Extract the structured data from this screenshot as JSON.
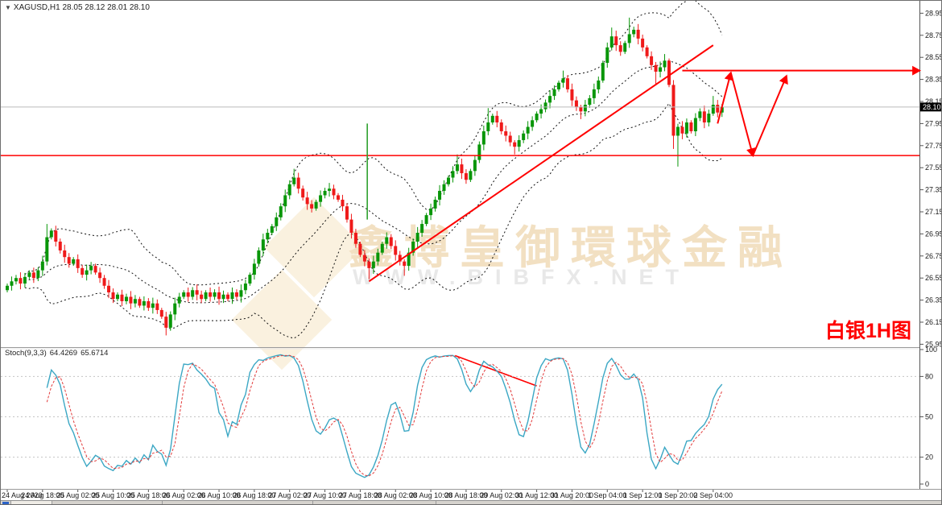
{
  "window": {
    "title_expander": "▼",
    "symbol_title": "XAGUSD,H1",
    "ohlc_text": "28.05 28.12 28.01 28.10"
  },
  "watermark": {
    "cn": "鑫博皇御環球金融",
    "url": "WWW.BIBFX.NET"
  },
  "overlay_label": "白银1H图",
  "quote": {
    "last": 28.1,
    "last_label": "28.10"
  },
  "stoch_header": {
    "name": "Stoch(9,3,3)",
    "main_value": "64.4269",
    "signal_value": "65.6714"
  },
  "style": {
    "bull": "#089608",
    "bear": "#ef1a1a",
    "band": "#111111",
    "bidline": "#bbbbbb",
    "annotation": "#ff0000",
    "vline": "#2fa12f",
    "stoch_main": "#3ba7c4",
    "stoch_signal": "#e23a3a",
    "level": "#c4c4c4",
    "axis_text": "#1a1a1a",
    "frame": "#555555",
    "separator": "#9a9a9a",
    "tag_bg": "#000000",
    "tag_text": "#ffffff"
  },
  "chart_data": {
    "type": "candlestick",
    "symbol": "XAGUSD",
    "timeframe": "H1",
    "title": "XAGUSD,H1 28.05 28.12 28.01 28.10",
    "x_labels": [
      "24 Aug 2020",
      "24 Aug 18:00",
      "25 Aug 02:00",
      "25 Aug 10:00",
      "25 Aug 18:00",
      "26 Aug 02:00",
      "26 Aug 10:00",
      "26 Aug 18:00",
      "27 Aug 02:00",
      "27 Aug 10:00",
      "27 Aug 18:00",
      "28 Aug 02:00",
      "28 Aug 10:00",
      "28 Aug 18:00",
      "29 Aug 02:00",
      "31 Aug 12:00",
      "31 Aug 20:00",
      "1 Sep 04:00",
      "1 Sep 12:00",
      "1 Sep 20:00",
      "2 Sep 04:00"
    ],
    "bars_per_label": 8,
    "y_ticks": [
      28.95,
      28.75,
      28.55,
      28.35,
      28.15,
      27.95,
      27.75,
      27.55,
      27.35,
      27.15,
      26.95,
      26.75,
      26.55,
      26.35,
      26.15,
      25.95
    ],
    "closes": [
      26.48,
      26.52,
      26.55,
      26.5,
      26.56,
      26.6,
      26.55,
      26.62,
      26.7,
      26.92,
      26.98,
      26.88,
      26.8,
      26.74,
      26.68,
      26.72,
      26.64,
      26.58,
      26.62,
      26.66,
      26.6,
      26.55,
      26.48,
      26.42,
      26.36,
      26.4,
      26.34,
      26.38,
      26.32,
      26.36,
      26.3,
      26.34,
      26.28,
      26.32,
      26.26,
      26.2,
      26.1,
      26.22,
      26.32,
      26.38,
      26.42,
      26.38,
      26.44,
      26.4,
      26.36,
      26.42,
      26.38,
      26.42,
      26.36,
      26.4,
      26.36,
      26.42,
      26.38,
      26.44,
      26.5,
      26.58,
      26.68,
      26.8,
      26.9,
      26.96,
      27.02,
      27.1,
      27.2,
      27.3,
      27.4,
      27.46,
      27.36,
      27.28,
      27.22,
      27.18,
      27.24,
      27.3,
      27.34,
      27.36,
      27.3,
      27.26,
      27.2,
      27.08,
      26.96,
      26.86,
      26.76,
      26.7,
      26.64,
      26.7,
      26.78,
      26.86,
      26.92,
      26.84,
      26.76,
      26.7,
      26.66,
      26.78,
      26.88,
      26.96,
      27.04,
      27.12,
      27.18,
      27.26,
      27.34,
      27.4,
      27.46,
      27.52,
      27.58,
      27.5,
      27.44,
      27.52,
      27.62,
      27.76,
      27.88,
      27.96,
      28.02,
      27.96,
      27.88,
      27.84,
      27.78,
      27.74,
      27.8,
      27.86,
      27.92,
      27.98,
      28.04,
      28.08,
      28.14,
      28.2,
      28.26,
      28.32,
      28.36,
      28.26,
      28.16,
      28.1,
      28.06,
      28.12,
      28.18,
      28.26,
      28.34,
      28.5,
      28.64,
      28.74,
      28.66,
      28.6,
      28.68,
      28.76,
      28.8,
      28.72,
      28.64,
      28.56,
      28.48,
      28.42,
      28.46,
      28.52,
      28.3,
      27.84,
      27.92,
      27.86,
      27.96,
      27.88,
      28.0,
      28.06,
      27.96,
      28.04,
      28.12,
      28.05,
      28.1
    ],
    "wick_high_overrides": {
      "9": 27.04,
      "10": 27.0,
      "65": 27.54,
      "102": 27.67,
      "109": 28.09,
      "126": 28.43,
      "137": 28.82,
      "141": 28.91,
      "149": 28.58,
      "160": 28.2,
      "162": 28.12
    },
    "wick_low_overrides": {
      "36": 26.03,
      "82": 26.54,
      "90": 26.57,
      "115": 27.67,
      "130": 27.99,
      "147": 28.3,
      "151": 27.72,
      "152": 27.56,
      "162": 28.01
    },
    "last_bar": {
      "open": 28.05,
      "high": 28.12,
      "low": 28.01,
      "close": 28.1
    },
    "indicators": {
      "bollinger": {
        "period": 20,
        "deviation": 2,
        "style": "dashed"
      },
      "stochastic": {
        "label": "Stoch(9,3,3)",
        "k_period": 9,
        "slowing": 3,
        "d_period": 3,
        "main_value": 64.4269,
        "signal_value": 65.6714,
        "levels": [
          80,
          50,
          20
        ],
        "y_ticks": [
          100,
          80,
          50,
          20,
          0
        ]
      }
    },
    "annotations": [
      {
        "type": "hline",
        "price": 27.66
      },
      {
        "type": "arrow_hline",
        "price": 28.43,
        "from_bar": 153,
        "to_x": 1138
      },
      {
        "type": "trendline",
        "x1_bar": 82,
        "y1": 26.52,
        "x2_bar": 160,
        "y2": 28.66
      },
      {
        "type": "vline",
        "bar": 81.6,
        "y1": 27.95,
        "y2": 27.08
      },
      {
        "type": "zigzag",
        "points_bar_price": [
          [
            161,
            27.95
          ],
          [
            164,
            28.41
          ],
          [
            169,
            27.66
          ],
          [
            176.6,
            28.38
          ]
        ]
      },
      {
        "type": "stoch_trendline",
        "x1_bar": 101.5,
        "v1": 95.5,
        "x2_bar": 120,
        "v2": 73
      }
    ]
  }
}
